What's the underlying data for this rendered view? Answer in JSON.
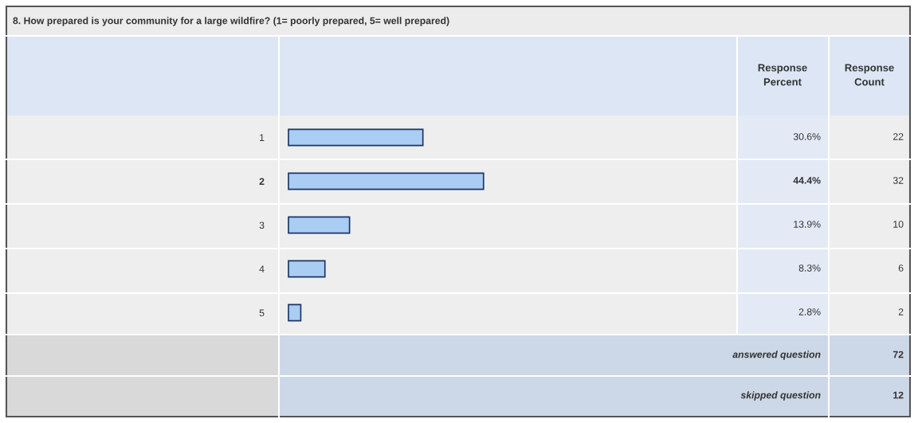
{
  "chart_data": {
    "type": "bar",
    "orientation": "horizontal",
    "title": "8. How prepared is your community for a large wildfire? (1= poorly prepared, 5= well prepared)",
    "categories": [
      "1",
      "2",
      "3",
      "4",
      "5"
    ],
    "values": [
      30.6,
      44.4,
      13.9,
      8.3,
      2.8
    ],
    "value_labels": [
      "30.6%",
      "44.4%",
      "13.9%",
      "8.3%",
      "2.8%"
    ],
    "color": "#a9cdf3",
    "annotations": [
      "Response\nPercent",
      "Response\nCount",
      "22",
      "32",
      "10",
      "6",
      "2",
      "answered question",
      "72",
      "skipped question",
      "12"
    ]
  }
}
